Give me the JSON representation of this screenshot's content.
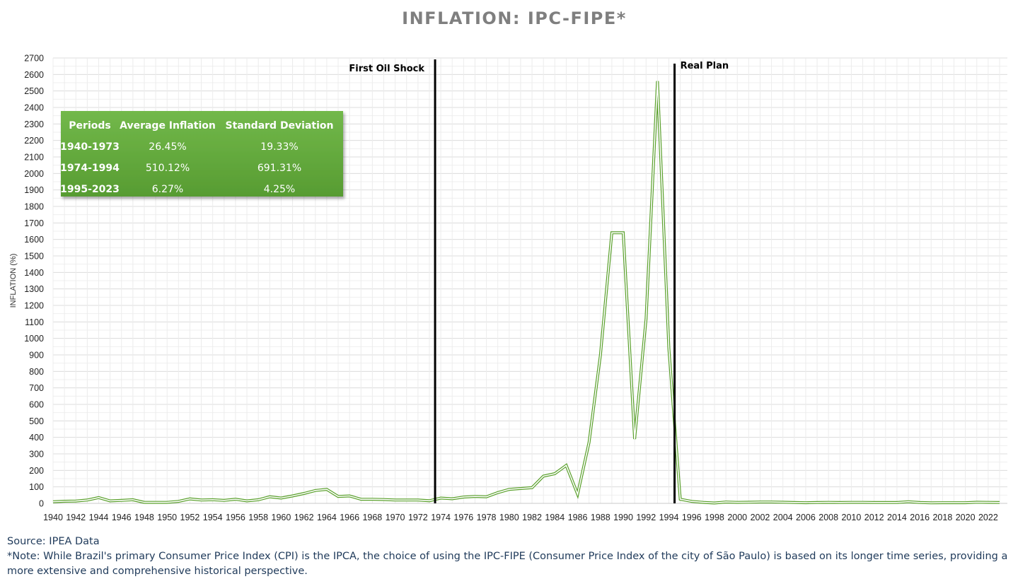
{
  "chart_data": {
    "type": "line",
    "title": "INFLATION: IPC-FIPE*",
    "ylabel": "INFLATION (%)",
    "xlabel": "",
    "ylim": [
      0,
      2700
    ],
    "ytick_step": 100,
    "xlim": [
      1940,
      2023
    ],
    "xtick_labels": [
      1940,
      1942,
      1944,
      1946,
      1948,
      1950,
      1952,
      1954,
      1956,
      1958,
      1960,
      1962,
      1964,
      1966,
      1968,
      1970,
      1972,
      1974,
      1976,
      1978,
      1980,
      1982,
      1984,
      1986,
      1988,
      1990,
      1992,
      1994,
      1996,
      1998,
      2000,
      2002,
      2004,
      2006,
      2008,
      2010,
      2012,
      2014,
      2016,
      2018,
      2020,
      2022
    ],
    "grid": true,
    "series_color": "#5aa02c",
    "series": [
      {
        "x": [
          1940,
          1941,
          1942,
          1943,
          1944,
          1945,
          1946,
          1947,
          1948,
          1949,
          1950,
          1951,
          1952,
          1953,
          1954,
          1955,
          1956,
          1957,
          1958,
          1959,
          1960,
          1961,
          1962,
          1963,
          1964,
          1965,
          1966,
          1967,
          1968,
          1969,
          1970,
          1971,
          1972,
          1973,
          1974,
          1975,
          1976,
          1977,
          1978,
          1979,
          1980,
          1981,
          1982,
          1983,
          1984,
          1985,
          1986,
          1987,
          1988,
          1989,
          1990,
          1991,
          1992,
          1993,
          1994,
          1995,
          1996,
          1997,
          1998,
          1999,
          2000,
          2001,
          2002,
          2003,
          2004,
          2005,
          2006,
          2007,
          2008,
          2009,
          2010,
          2011,
          2012,
          2013,
          2014,
          2015,
          2016,
          2017,
          2018,
          2019,
          2020,
          2021,
          2022,
          2023
        ],
        "values": [
          10,
          13,
          14,
          20,
          35,
          15,
          18,
          22,
          6,
          6,
          6,
          12,
          27,
          20,
          22,
          18,
          25,
          15,
          22,
          40,
          32,
          45,
          60,
          78,
          85,
          42,
          45,
          25,
          25,
          23,
          20,
          20,
          20,
          16,
          32,
          28,
          38,
          42,
          40,
          65,
          85,
          90,
          95,
          165,
          180,
          230,
          55,
          370,
          900,
          1640,
          1640,
          390,
          1120,
          2560,
          940,
          25,
          12,
          6,
          2,
          8,
          6,
          7,
          8,
          8,
          7,
          5,
          4,
          5,
          6,
          5,
          6,
          6,
          5,
          5,
          5,
          10,
          5,
          3,
          4,
          4,
          4,
          7,
          6,
          5
        ]
      }
    ],
    "annotations": [
      {
        "label": "First Oil Shock",
        "x": 1973.5
      },
      {
        "label": "Real Plan",
        "x": 1994.5
      }
    ],
    "table": {
      "headers": [
        "Periods",
        "Average Inflation",
        "Standard Deviation"
      ],
      "rows": [
        [
          "1940-1973",
          "26.45%",
          "19.33%"
        ],
        [
          "1974-1994",
          "510.12%",
          "691.31%"
        ],
        [
          "1995-2023",
          "6.27%",
          "4.25%"
        ]
      ],
      "fill_color": "#62a83b"
    }
  },
  "footer": {
    "source": "Source: IPEA Data",
    "note": "*Note: While Brazil's primary Consumer Price Index (CPI) is the IPCA, the choice of using the IPC-FIPE (Consumer Price Index of the city of São Paulo) is based on its longer time series, providing a more extensive and comprehensive historical perspective."
  }
}
